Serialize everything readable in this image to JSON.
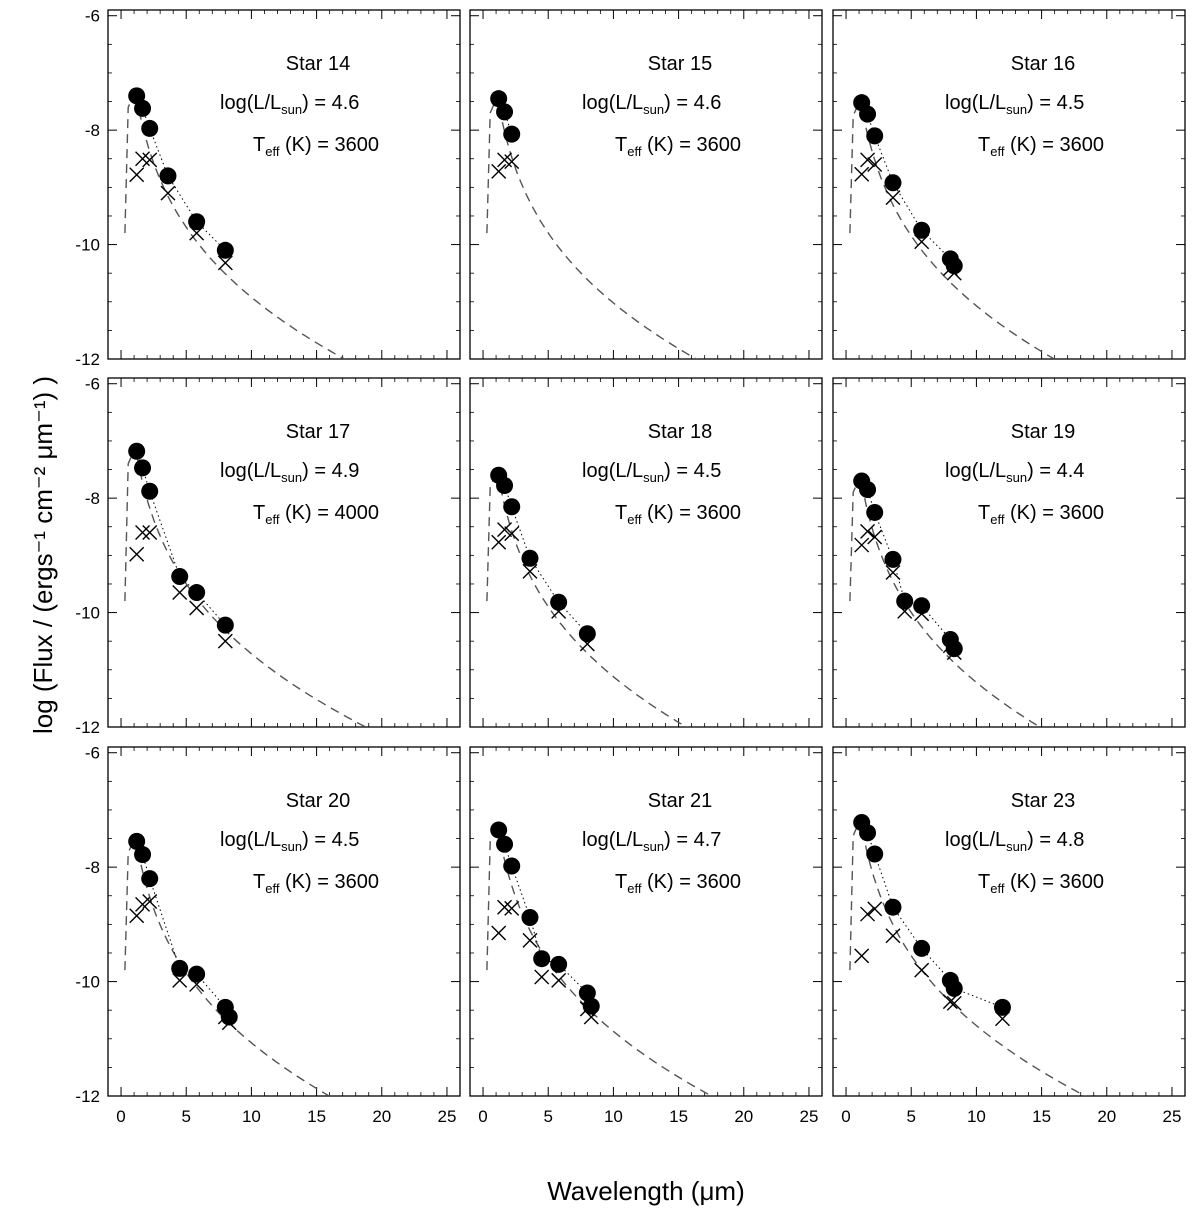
{
  "chart_data": {
    "type": "scatter",
    "layout": "3x3 grid of panels",
    "xlabel": "Wavelength (μm)",
    "ylabel": "log (Flux / (ergs⁻¹ cm⁻² μm⁻¹) )",
    "xlim": [
      -1,
      26
    ],
    "ylim": [
      -12,
      -5.9
    ],
    "xticks": [
      0,
      5,
      10,
      15,
      20,
      25
    ],
    "yticks": [
      -6,
      -8,
      -10,
      -12
    ],
    "grid": false,
    "colors": {
      "observed": "#000000",
      "model": "#555555",
      "dereddened_fit": "#000000"
    },
    "series_styles": {
      "circles": "filled circle",
      "crosses": "x marker",
      "model": "dashed line",
      "fit": "dotted line"
    },
    "panels": [
      {
        "title": "Star 14",
        "logL": "4.6",
        "teff": "3600",
        "peak": -7.5,
        "circles": [
          [
            1.2,
            -7.4
          ],
          [
            1.65,
            -7.62
          ],
          [
            2.2,
            -7.97
          ],
          [
            3.6,
            -8.8
          ],
          [
            5.8,
            -9.6
          ],
          [
            8.0,
            -10.1
          ]
        ],
        "crosses": [
          [
            1.2,
            -8.78
          ],
          [
            1.65,
            -8.5
          ],
          [
            2.2,
            -8.52
          ],
          [
            3.6,
            -9.1
          ],
          [
            5.8,
            -9.8
          ],
          [
            8.0,
            -10.32
          ]
        ]
      },
      {
        "title": "Star 15",
        "logL": "4.6",
        "teff": "3600",
        "peak": -7.6,
        "circles": [
          [
            1.2,
            -7.45
          ],
          [
            1.65,
            -7.68
          ],
          [
            2.2,
            -8.07
          ]
        ],
        "crosses": [
          [
            1.2,
            -8.72
          ],
          [
            1.65,
            -8.52
          ],
          [
            2.2,
            -8.55
          ]
        ]
      },
      {
        "title": "Star 16",
        "logL": "4.5",
        "teff": "3600",
        "peak": -7.65,
        "circles": [
          [
            1.2,
            -7.52
          ],
          [
            1.65,
            -7.72
          ],
          [
            2.2,
            -8.1
          ],
          [
            3.6,
            -8.92
          ],
          [
            5.8,
            -9.75
          ],
          [
            8.0,
            -10.25
          ],
          [
            8.3,
            -10.37
          ]
        ],
        "crosses": [
          [
            1.2,
            -8.77
          ],
          [
            1.65,
            -8.52
          ],
          [
            2.2,
            -8.6
          ],
          [
            3.6,
            -9.18
          ],
          [
            5.8,
            -9.95
          ],
          [
            8.0,
            -10.42
          ],
          [
            8.3,
            -10.5
          ]
        ]
      },
      {
        "title": "Star 17",
        "logL": "4.9",
        "teff": "4000",
        "peak": -7.3,
        "circles": [
          [
            1.2,
            -7.18
          ],
          [
            1.65,
            -7.47
          ],
          [
            2.2,
            -7.88
          ],
          [
            4.5,
            -9.37
          ],
          [
            5.8,
            -9.65
          ],
          [
            8.0,
            -10.22
          ]
        ],
        "crosses": [
          [
            1.2,
            -8.98
          ],
          [
            1.65,
            -8.6
          ],
          [
            2.2,
            -8.6
          ],
          [
            4.5,
            -9.65
          ],
          [
            5.8,
            -9.92
          ],
          [
            8.0,
            -10.5
          ]
        ]
      },
      {
        "title": "Star 18",
        "logL": "4.5",
        "teff": "3600",
        "peak": -7.7,
        "circles": [
          [
            1.2,
            -7.6
          ],
          [
            1.65,
            -7.78
          ],
          [
            2.2,
            -8.15
          ],
          [
            3.6,
            -9.05
          ],
          [
            5.8,
            -9.82
          ],
          [
            8.0,
            -10.37
          ]
        ],
        "crosses": [
          [
            1.2,
            -8.77
          ],
          [
            1.65,
            -8.55
          ],
          [
            2.2,
            -8.62
          ],
          [
            3.6,
            -9.28
          ],
          [
            5.8,
            -9.98
          ],
          [
            8.0,
            -10.55
          ]
        ]
      },
      {
        "title": "Star 19",
        "logL": "4.4",
        "teff": "3600",
        "peak": -7.8,
        "circles": [
          [
            1.2,
            -7.7
          ],
          [
            1.65,
            -7.85
          ],
          [
            2.2,
            -8.25
          ],
          [
            3.6,
            -9.07
          ],
          [
            4.5,
            -9.8
          ],
          [
            5.8,
            -9.88
          ],
          [
            8.0,
            -10.47
          ],
          [
            8.3,
            -10.63
          ]
        ],
        "crosses": [
          [
            1.2,
            -8.82
          ],
          [
            1.65,
            -8.58
          ],
          [
            2.2,
            -8.68
          ],
          [
            3.6,
            -9.3
          ],
          [
            4.5,
            -9.98
          ],
          [
            5.8,
            -10.02
          ],
          [
            8.0,
            -10.58
          ],
          [
            8.3,
            -10.7
          ]
        ]
      },
      {
        "title": "Star 20",
        "logL": "4.5",
        "teff": "3600",
        "peak": -7.65,
        "circles": [
          [
            1.2,
            -7.55
          ],
          [
            1.65,
            -7.78
          ],
          [
            2.2,
            -8.2
          ],
          [
            4.5,
            -9.77
          ],
          [
            5.8,
            -9.87
          ],
          [
            8.0,
            -10.45
          ],
          [
            8.3,
            -10.62
          ]
        ],
        "crosses": [
          [
            1.2,
            -8.85
          ],
          [
            1.65,
            -8.65
          ],
          [
            2.2,
            -8.6
          ],
          [
            4.5,
            -9.98
          ],
          [
            5.8,
            -10.05
          ],
          [
            8.0,
            -10.62
          ],
          [
            8.3,
            -10.72
          ]
        ]
      },
      {
        "title": "Star 21",
        "logL": "4.7",
        "teff": "3600",
        "peak": -7.45,
        "circles": [
          [
            1.2,
            -7.35
          ],
          [
            1.65,
            -7.6
          ],
          [
            2.2,
            -7.98
          ],
          [
            3.6,
            -8.88
          ],
          [
            4.5,
            -9.6
          ],
          [
            5.8,
            -9.7
          ],
          [
            8.0,
            -10.2
          ],
          [
            8.3,
            -10.43
          ]
        ],
        "crosses": [
          [
            1.2,
            -9.15
          ],
          [
            1.65,
            -8.7
          ],
          [
            2.2,
            -8.72
          ],
          [
            3.6,
            -9.28
          ],
          [
            4.5,
            -9.92
          ],
          [
            5.8,
            -9.98
          ],
          [
            8.0,
            -10.48
          ],
          [
            8.3,
            -10.62
          ]
        ]
      },
      {
        "title": "Star 23",
        "logL": "4.8",
        "teff": "3600",
        "peak": -7.35,
        "circles": [
          [
            1.2,
            -7.22
          ],
          [
            1.65,
            -7.4
          ],
          [
            2.2,
            -7.77
          ],
          [
            3.6,
            -8.7
          ],
          [
            5.8,
            -9.42
          ],
          [
            8.0,
            -9.98
          ],
          [
            8.3,
            -10.12
          ],
          [
            12.0,
            -10.45
          ]
        ],
        "crosses": [
          [
            1.2,
            -9.55
          ],
          [
            1.65,
            -8.82
          ],
          [
            2.2,
            -8.73
          ],
          [
            3.6,
            -9.2
          ],
          [
            5.8,
            -9.8
          ],
          [
            8.0,
            -10.35
          ],
          [
            8.3,
            -10.38
          ],
          [
            12.0,
            -10.65
          ]
        ]
      }
    ]
  }
}
